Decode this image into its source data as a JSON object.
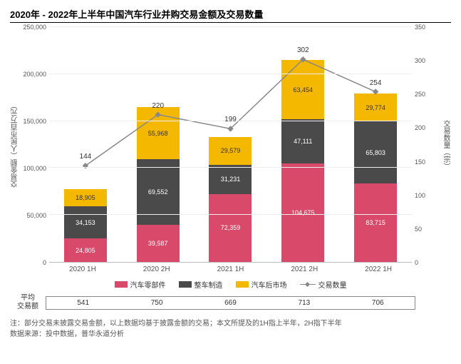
{
  "title": "2020年 - 2022年上半年中国汽车行业并购交易金额及交易数量",
  "chart": {
    "type": "stacked-bar-with-line",
    "categories": [
      "2020 1H",
      "2020 2H",
      "2021 1H",
      "2021 2H",
      "2022 1H"
    ],
    "left_axis": {
      "label": "交易金额（人民币百万元）",
      "min": 0,
      "max": 250000,
      "step": 50000,
      "ticks": [
        "0",
        "50,000",
        "100,000",
        "150,000",
        "200,000",
        "250,000"
      ]
    },
    "right_axis": {
      "label": "交易数量（宗）",
      "min": 0,
      "max": 350,
      "step": 50,
      "ticks": [
        "0",
        "50",
        "100",
        "150",
        "200",
        "250",
        "300",
        "350"
      ]
    },
    "series": [
      {
        "name": "汽车零部件",
        "color": "#d94a6a",
        "axis": "left",
        "values": [
          24805,
          39587,
          72359,
          104675,
          83715
        ],
        "labels": [
          "24,805",
          "39,587",
          "72,359",
          "104,675",
          "83,715"
        ]
      },
      {
        "name": "整车制造",
        "color": "#4a4a4a",
        "axis": "left",
        "values": [
          34153,
          69552,
          31231,
          47111,
          65803
        ],
        "labels": [
          "34,153",
          "69,552",
          "31,231",
          "47,111",
          "65,803"
        ]
      },
      {
        "name": "汽车后市场",
        "color": "#f5b800",
        "axis": "left",
        "values": [
          18905,
          55968,
          29579,
          63454,
          29774
        ],
        "labels": [
          "18,905",
          "55,968",
          "29,579",
          "63,454",
          "29,774"
        ]
      }
    ],
    "line": {
      "name": "交易数量",
      "color": "#888888",
      "marker": "diamond",
      "axis": "right",
      "values": [
        144,
        220,
        199,
        302,
        254
      ],
      "labels": [
        "144",
        "220",
        "199",
        "302",
        "254"
      ]
    },
    "bar_width": 0.55,
    "grid_color": "#eeeeee",
    "background_color": "#ffffff",
    "title_fontsize": 13,
    "axis_fontsize": 9,
    "label_fontsize": 10
  },
  "avg_row": {
    "label": "平均\n交易额",
    "values": [
      "541",
      "750",
      "669",
      "713",
      "706"
    ]
  },
  "footnote_lines": [
    "注：部分交易未披露交易金额，以上数据均基于披露金额的交易；本文所提及的1H指上半年，2H指下半年",
    "数据来源：投中数据，普华永道分析"
  ]
}
